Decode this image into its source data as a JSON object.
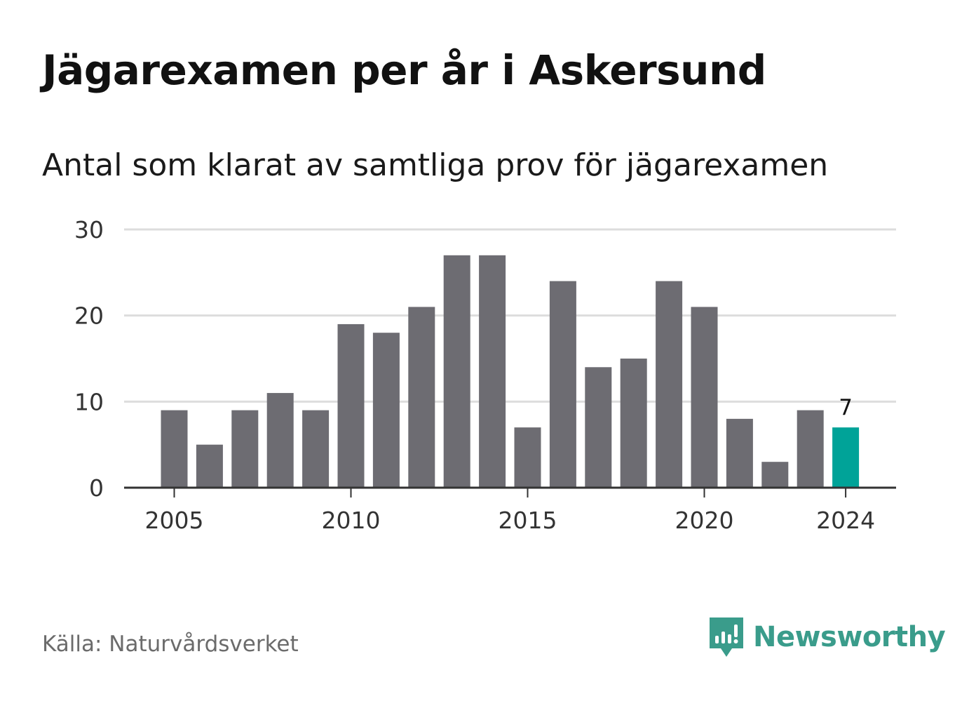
{
  "header": {
    "title": "Jägarexamen per år i Askersund",
    "subtitle": "Antal som klarat av samtliga prov för jägarexamen"
  },
  "footer": {
    "source": "Källa: Naturvårdsverket",
    "brand": "Newsworthy",
    "brand_icon": "newsworthy-logo-icon"
  },
  "colors": {
    "bar": "#6d6c72",
    "highlight": "#00a398",
    "grid": "#dddddd",
    "axis": "#333333",
    "brand": "#3a9c8b"
  },
  "chart_data": {
    "type": "bar",
    "title": "Jägarexamen per år i Askersund",
    "subtitle": "Antal som klarat av samtliga prov för jägarexamen",
    "xlabel": "",
    "ylabel": "",
    "categories": [
      2005,
      2006,
      2007,
      2008,
      2009,
      2010,
      2011,
      2012,
      2013,
      2014,
      2015,
      2016,
      2017,
      2018,
      2019,
      2020,
      2021,
      2022,
      2023,
      2024
    ],
    "values": [
      9,
      5,
      9,
      11,
      9,
      19,
      18,
      21,
      27,
      27,
      7,
      24,
      14,
      15,
      24,
      21,
      8,
      3,
      9,
      7
    ],
    "x_ticks": [
      2005,
      2010,
      2015,
      2020,
      2024
    ],
    "y_ticks": [
      0,
      10,
      20,
      30
    ],
    "ylim": [
      0,
      30
    ],
    "grid": true,
    "highlight_category": 2024,
    "highlight_label": "7"
  }
}
